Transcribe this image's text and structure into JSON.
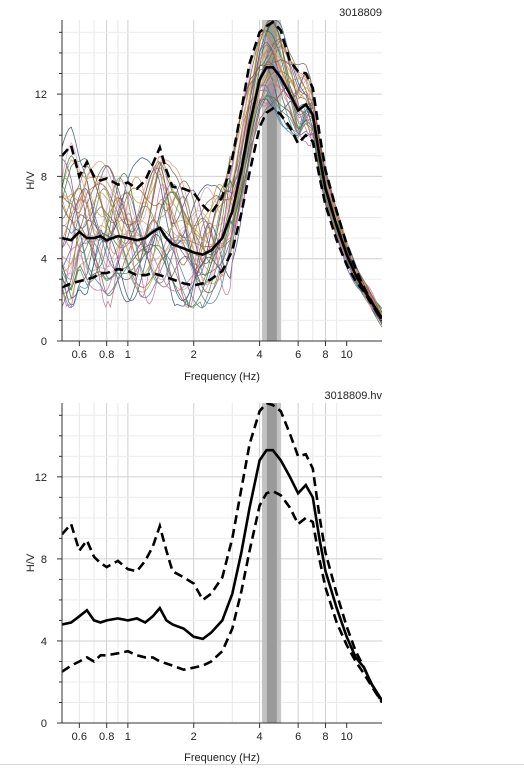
{
  "chart_data": [
    {
      "type": "line",
      "title": "3018809",
      "xlabel": "Frequency (Hz)",
      "ylabel": "H/V",
      "xscale": "log",
      "xlim": [
        0.5,
        14.5
      ],
      "ylim": [
        0,
        15.6
      ],
      "xticks": [
        0.6,
        0.8,
        1,
        2,
        4,
        6,
        8,
        10
      ],
      "xtick_labels": [
        "0.6",
        "0.8",
        "1",
        "2",
        "4",
        "6",
        "8",
        "10"
      ],
      "yticks": [
        0,
        4,
        8,
        12
      ],
      "ytick_labels": [
        "0",
        "4",
        "8",
        "12"
      ],
      "grid": true,
      "peak_band": [
        4.1,
        5.0
      ],
      "peak_center": 4.55,
      "x": [
        0.5,
        0.55,
        0.6,
        0.65,
        0.7,
        0.75,
        0.8,
        0.9,
        1.0,
        1.1,
        1.2,
        1.3,
        1.4,
        1.5,
        1.6,
        1.8,
        2.0,
        2.2,
        2.4,
        2.7,
        3.0,
        3.3,
        3.6,
        4.0,
        4.3,
        4.6,
        5.0,
        5.5,
        6.0,
        6.5,
        7.0,
        7.5,
        8.0,
        9.0,
        10.0,
        11.0,
        12.0,
        13.0,
        14.5
      ],
      "series": [
        {
          "role": "mean",
          "values": [
            5.0,
            4.9,
            5.3,
            5.0,
            5.0,
            5.1,
            4.9,
            5.1,
            5.0,
            4.9,
            5.0,
            5.3,
            5.5,
            5.0,
            4.7,
            4.5,
            4.3,
            4.2,
            4.4,
            5.0,
            6.3,
            8.3,
            10.5,
            12.7,
            13.3,
            13.3,
            12.8,
            12.0,
            11.2,
            11.5,
            11.0,
            9.0,
            7.4,
            5.6,
            4.2,
            3.2,
            2.5,
            1.9,
            1.1
          ]
        },
        {
          "role": "mean+std",
          "values": [
            9.0,
            9.5,
            8.0,
            8.7,
            8.0,
            7.8,
            7.9,
            7.6,
            7.7,
            7.4,
            7.8,
            8.6,
            9.4,
            8.3,
            7.5,
            7.4,
            7.2,
            6.6,
            6.2,
            7.0,
            8.9,
            11.2,
            13.5,
            15.0,
            15.3,
            15.5,
            15.1,
            13.6,
            13.1,
            13.0,
            12.3,
            10.1,
            8.3,
            6.3,
            4.7,
            3.5,
            2.6,
            1.9,
            1.0
          ]
        },
        {
          "role": "mean-std",
          "values": [
            2.6,
            2.8,
            2.9,
            3.0,
            3.1,
            3.3,
            3.3,
            3.5,
            3.4,
            3.2,
            3.2,
            3.3,
            3.2,
            3.1,
            3.0,
            2.8,
            2.7,
            2.8,
            3.0,
            3.4,
            4.4,
            6.2,
            8.2,
            10.4,
            11.1,
            11.3,
            11.0,
            10.4,
            9.6,
            10.0,
            9.7,
            8.0,
            6.6,
            4.9,
            3.7,
            2.9,
            2.4,
            1.8,
            1.0
          ]
        }
      ]
    },
    {
      "type": "line",
      "title": "3018809.hv",
      "xlabel": "Frequency (Hz)",
      "ylabel": "H/V",
      "xscale": "log",
      "xlim": [
        0.5,
        14.5
      ],
      "ylim": [
        0,
        15.6
      ],
      "xticks": [
        0.6,
        0.8,
        1,
        2,
        4,
        6,
        8,
        10
      ],
      "xtick_labels": [
        "0.6",
        "0.8",
        "1",
        "2",
        "4",
        "6",
        "8",
        "10"
      ],
      "yticks": [
        0,
        4,
        8,
        12
      ],
      "ytick_labels": [
        "0",
        "4",
        "8",
        "12"
      ],
      "grid": true,
      "peak_band": [
        4.1,
        5.0
      ],
      "peak_center": 4.55,
      "x": [
        0.5,
        0.55,
        0.6,
        0.65,
        0.7,
        0.75,
        0.8,
        0.9,
        1.0,
        1.1,
        1.2,
        1.3,
        1.4,
        1.5,
        1.6,
        1.8,
        2.0,
        2.2,
        2.4,
        2.7,
        3.0,
        3.3,
        3.6,
        4.0,
        4.3,
        4.6,
        5.0,
        5.5,
        6.0,
        6.5,
        7.0,
        7.5,
        8.0,
        9.0,
        10.0,
        11.0,
        12.0,
        13.0,
        14.5
      ],
      "series": [
        {
          "role": "mean",
          "values": [
            4.8,
            4.9,
            5.2,
            5.5,
            5.0,
            4.9,
            5.0,
            5.1,
            5.0,
            5.1,
            4.9,
            5.2,
            5.6,
            5.0,
            4.8,
            4.6,
            4.2,
            4.1,
            4.4,
            5.0,
            6.3,
            8.3,
            10.5,
            12.8,
            13.3,
            13.3,
            12.8,
            12.0,
            11.2,
            11.6,
            11.0,
            9.0,
            7.4,
            5.6,
            4.2,
            3.2,
            2.7,
            1.9,
            1.1
          ]
        },
        {
          "role": "mean+std",
          "values": [
            9.2,
            9.7,
            8.4,
            8.9,
            8.1,
            7.8,
            7.6,
            7.9,
            7.5,
            7.4,
            7.9,
            8.6,
            9.6,
            8.4,
            7.4,
            7.1,
            6.8,
            6.0,
            6.3,
            7.1,
            9.0,
            11.4,
            13.6,
            15.2,
            15.6,
            15.5,
            15.2,
            14.1,
            13.0,
            13.1,
            12.4,
            10.1,
            8.3,
            6.3,
            4.7,
            3.5,
            2.7,
            1.9,
            1.0
          ]
        },
        {
          "role": "mean-std",
          "values": [
            2.5,
            2.8,
            3.0,
            3.2,
            3.0,
            3.3,
            3.3,
            3.4,
            3.5,
            3.3,
            3.2,
            3.2,
            3.0,
            2.9,
            2.8,
            2.6,
            2.7,
            2.8,
            3.0,
            3.5,
            4.6,
            6.4,
            8.4,
            10.6,
            11.2,
            11.3,
            11.1,
            10.5,
            9.7,
            10.0,
            9.8,
            8.0,
            6.6,
            4.9,
            3.8,
            3.0,
            2.4,
            1.8,
            1.0
          ]
        }
      ]
    }
  ]
}
